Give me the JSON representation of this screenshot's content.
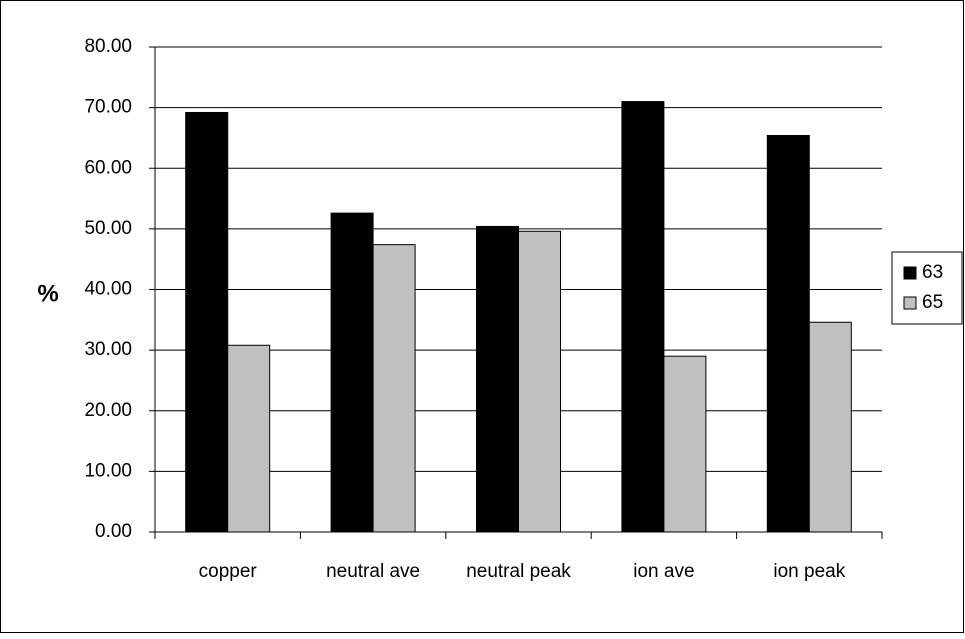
{
  "chart_data": {
    "type": "bar",
    "y_label": "%",
    "categories": [
      "copper",
      "neutral ave",
      "neutral peak",
      "ion ave",
      "ion peak"
    ],
    "series": [
      {
        "name": "63",
        "color": "#000000",
        "values": [
          69.2,
          52.6,
          50.4,
          71.0,
          65.4
        ]
      },
      {
        "name": "65",
        "color": "#c0c0c0",
        "values": [
          30.8,
          47.4,
          49.6,
          29.0,
          34.6
        ]
      }
    ],
    "ylim": [
      0,
      80
    ],
    "yticks": [
      {
        "value": 0,
        "label": "0.00"
      },
      {
        "value": 10,
        "label": "10.00"
      },
      {
        "value": 20,
        "label": "20.00"
      },
      {
        "value": 30,
        "label": "30.00"
      },
      {
        "value": 40,
        "label": "40.00"
      },
      {
        "value": 50,
        "label": "50.00"
      },
      {
        "value": 60,
        "label": "60.00"
      },
      {
        "value": 70,
        "label": "70.00"
      },
      {
        "value": 80,
        "label": "80.00"
      }
    ],
    "grid": true,
    "legend": "right"
  }
}
